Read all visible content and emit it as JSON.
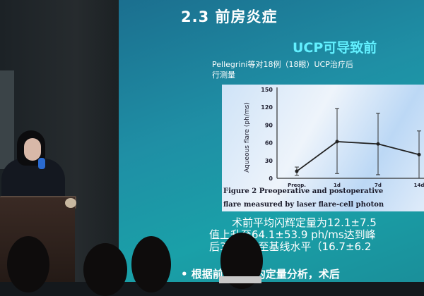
{
  "slide": {
    "title": "2.3 前房炎症",
    "subtitle": "UCP可导致前",
    "intro_line1": "Pellegrini等对18例（18眼）UCP治疗后",
    "intro_line2": "行测量",
    "caption_line1": "Figure 2 Preoperative and postoperative",
    "caption_line2": "flare measured by laser flare-cell photon",
    "body_line1": "术前平均闪辉定量为12.1±7.5",
    "body_line2": "值上升至64.1±53.9 ph/ms达到峰",
    "body_line3": "后3个月降至基线水平（16.7±6.2",
    "bullet": "• 根据前房闪辉的定量分析，术后"
  },
  "chart_data": {
    "type": "line",
    "title": "",
    "xlabel": "",
    "ylabel": "Aqueous flare (ph/ms)",
    "categories": [
      "Preop.",
      "1d",
      "7d",
      "14d"
    ],
    "yticks": [
      "0",
      "30",
      "60",
      "90",
      "120",
      "150"
    ],
    "ylim": [
      0,
      150
    ],
    "series": [
      {
        "values": [
          12,
          62,
          58,
          40
        ],
        "error_low": [
          5,
          8,
          6,
          0
        ],
        "error_high": [
          19,
          118,
          110,
          80
        ]
      }
    ]
  }
}
